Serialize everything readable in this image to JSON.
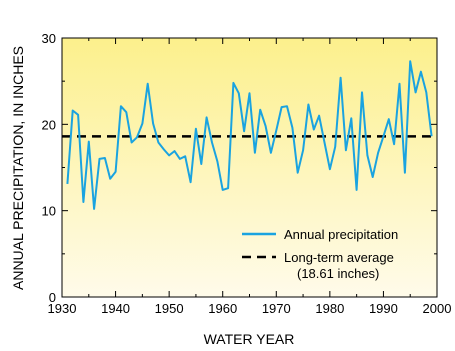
{
  "chart_data": {
    "type": "line",
    "xlabel": "WATER YEAR",
    "ylabel": "ANNUAL PRECIPITATION, IN INCHES",
    "xlim": [
      1930,
      2000
    ],
    "ylim": [
      0,
      30
    ],
    "x_ticks": [
      1930,
      1940,
      1950,
      1960,
      1970,
      1980,
      1990,
      2000
    ],
    "y_ticks": [
      0,
      10,
      20,
      30
    ],
    "grid": false,
    "legend_position": "bottom-right",
    "background": "yellow-gradient",
    "series": [
      {
        "name": "Annual precipitation",
        "color": "#1aa3e0",
        "x": [
          1931,
          1932,
          1933,
          1934,
          1935,
          1936,
          1937,
          1938,
          1939,
          1940,
          1941,
          1942,
          1943,
          1944,
          1945,
          1946,
          1947,
          1948,
          1949,
          1950,
          1951,
          1952,
          1953,
          1954,
          1955,
          1956,
          1957,
          1958,
          1959,
          1960,
          1961,
          1962,
          1963,
          1964,
          1965,
          1966,
          1967,
          1968,
          1969,
          1970,
          1971,
          1972,
          1973,
          1974,
          1975,
          1976,
          1977,
          1978,
          1979,
          1980,
          1981,
          1982,
          1983,
          1984,
          1985,
          1986,
          1987,
          1988,
          1989,
          1990,
          1991,
          1992,
          1993,
          1994,
          1995,
          1996,
          1997,
          1998,
          1999
        ],
        "y": [
          13.1,
          21.6,
          21.1,
          11.0,
          18.0,
          10.2,
          16.0,
          16.1,
          13.7,
          14.5,
          22.1,
          21.4,
          17.9,
          18.5,
          20.1,
          24.7,
          20.1,
          17.9,
          17.1,
          16.4,
          16.9,
          16.0,
          16.3,
          13.3,
          19.5,
          15.4,
          20.8,
          17.9,
          15.7,
          12.4,
          12.6,
          24.8,
          23.6,
          19.2,
          23.6,
          16.7,
          21.7,
          19.8,
          16.7,
          19.3,
          22.0,
          22.1,
          19.6,
          14.4,
          17.0,
          22.3,
          19.4,
          21.0,
          17.9,
          14.8,
          17.4,
          25.4,
          17.0,
          20.7,
          12.4,
          23.7,
          16.4,
          13.9,
          16.7,
          18.6,
          20.6,
          17.7,
          24.7,
          14.4,
          27.3,
          23.7,
          26.1,
          23.7,
          18.61
        ]
      },
      {
        "name": "Long-term average",
        "color": "#000000",
        "dashed": true,
        "x": [
          1930,
          2000
        ],
        "y": [
          18.61,
          18.61
        ]
      }
    ],
    "legend": [
      {
        "label": "Annual precipitation"
      },
      {
        "label": "Long-term average",
        "sublabel": "(18.61 inches)"
      }
    ]
  }
}
